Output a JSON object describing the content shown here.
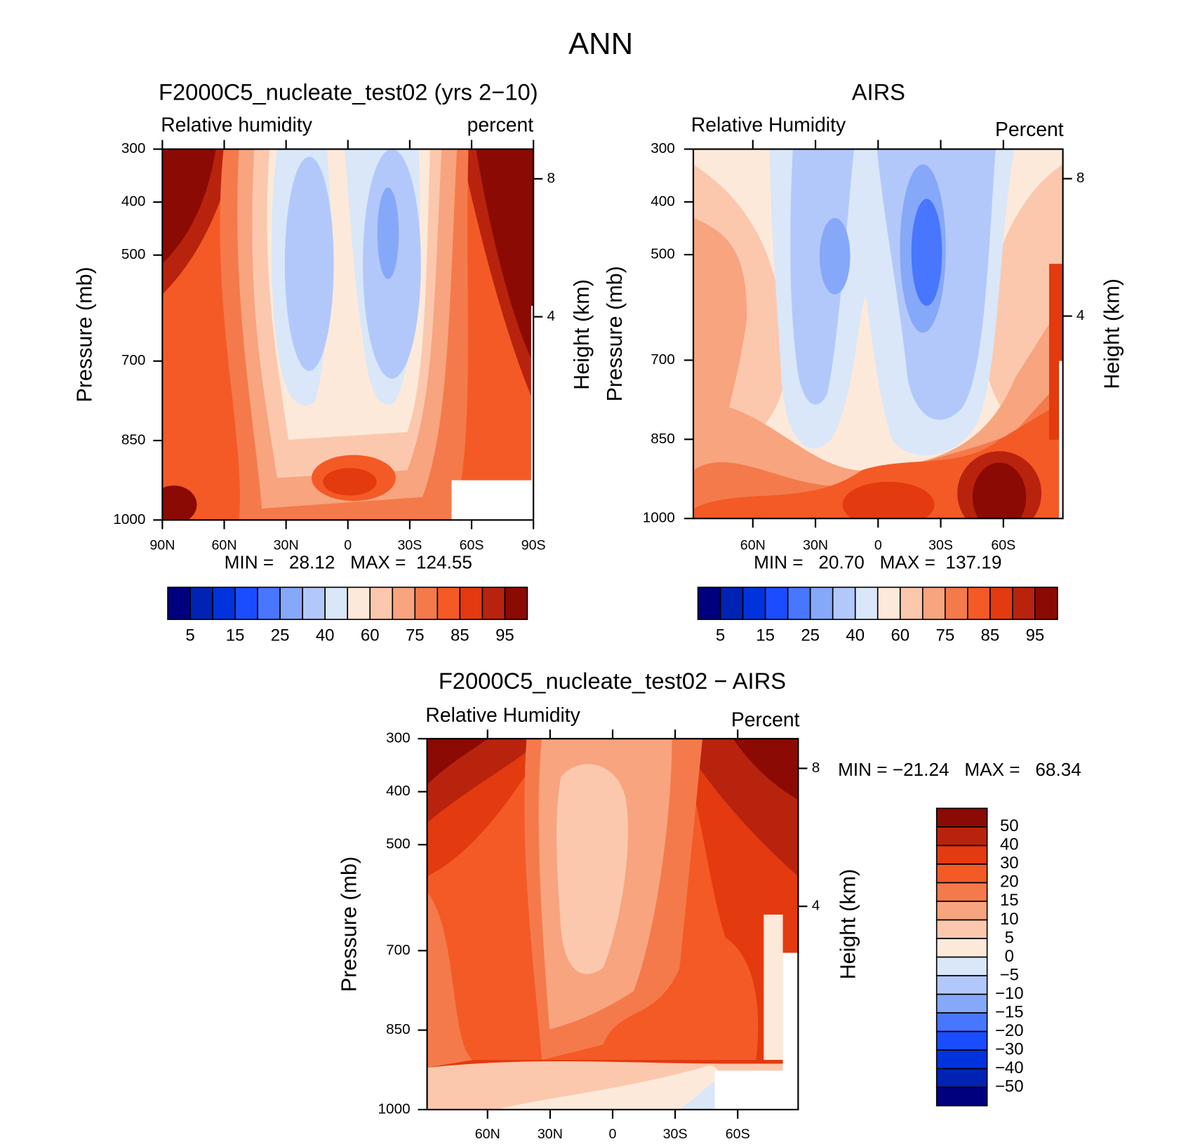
{
  "chart_data": {
    "type": "contour",
    "title": "ANN",
    "colors": [
      "#00007f",
      "#0023b3",
      "#0033dd",
      "#1a4dff",
      "#4876ff",
      "#86a8f8",
      "#b3c8fa",
      "#d9e7f8",
      "#fde9da",
      "#fbc8ad",
      "#f7a47f",
      "#f47a4b",
      "#f45a26",
      "#e33a0f",
      "#b8230e",
      "#8b0a03"
    ],
    "panels": [
      {
        "title": "F2000C5_nucleate_test02 (yrs 2−10)",
        "left_label": "Relative humidity",
        "right_label": "percent",
        "ylabel": "Pressure (mb)",
        "y2label": "Height (km)",
        "min_max": "MIN =   28.12   MAX =  124.55",
        "xlim": [
          90,
          -90
        ],
        "xticks": [
          {
            "value": 90,
            "label": "90N"
          },
          {
            "value": 60,
            "label": "60N"
          },
          {
            "value": 30,
            "label": "30N"
          },
          0,
          {
            "value": -30,
            "label": "30S"
          },
          {
            "value": -60,
            "label": "60S"
          },
          {
            "value": -90,
            "label": "90S"
          }
        ],
        "ylim": [
          1000,
          300
        ],
        "yticks": [
          300,
          400,
          500,
          700,
          850,
          1000
        ],
        "y2ticks": [
          8,
          4
        ],
        "colorbar_labels": [
          5,
          15,
          25,
          40,
          60,
          75,
          85,
          95
        ]
      },
      {
        "title": "AIRS",
        "left_label": "Relative Humidity",
        "right_label": "Percent",
        "ylabel": "Pressure (mb)",
        "y2label": "Height (km)",
        "min_max": "MIN =   20.70   MAX =  137.19",
        "xlim": [
          88.5,
          -88.5
        ],
        "xticks": [
          {
            "value": 60,
            "label": "60N"
          },
          {
            "value": 30,
            "label": "30N"
          },
          0,
          {
            "value": -30,
            "label": "30S"
          },
          {
            "value": -60,
            "label": "60S"
          }
        ],
        "ylim": [
          1000,
          300
        ],
        "yticks": [
          300,
          400,
          500,
          700,
          850,
          1000
        ],
        "y2ticks": [
          8,
          4
        ],
        "colorbar_labels": [
          5,
          15,
          25,
          40,
          60,
          75,
          85,
          95
        ]
      },
      {
        "title": "F2000C5_nucleate_test02 − AIRS",
        "left_label": "Relative Humidity",
        "right_label": "Percent",
        "ylabel": "Pressure (mb)",
        "y2label": "Height (km)",
        "min_max": "MIN = −21.24   MAX =   68.34",
        "xlim": [
          89,
          -89
        ],
        "xticks": [
          {
            "value": 60,
            "label": "60N"
          },
          {
            "value": 30,
            "label": "30N"
          },
          0,
          {
            "value": -30,
            "label": "30S"
          },
          {
            "value": -60,
            "label": "60S"
          }
        ],
        "ylim": [
          1000,
          300
        ],
        "yticks": [
          300,
          400,
          500,
          700,
          850,
          1000
        ],
        "y2ticks": [
          8,
          4
        ],
        "colorbar_labels": [
          50,
          40,
          30,
          20,
          15,
          10,
          5,
          0,
          {
            "value": -5,
            "label": "−5"
          },
          {
            "value": -10,
            "label": "−10"
          },
          {
            "value": -15,
            "label": "−15"
          },
          {
            "value": -20,
            "label": "−20"
          },
          {
            "value": -30,
            "label": "−30"
          },
          {
            "value": -40,
            "label": "−40"
          },
          {
            "value": -50,
            "label": "−50"
          }
        ]
      }
    ]
  }
}
